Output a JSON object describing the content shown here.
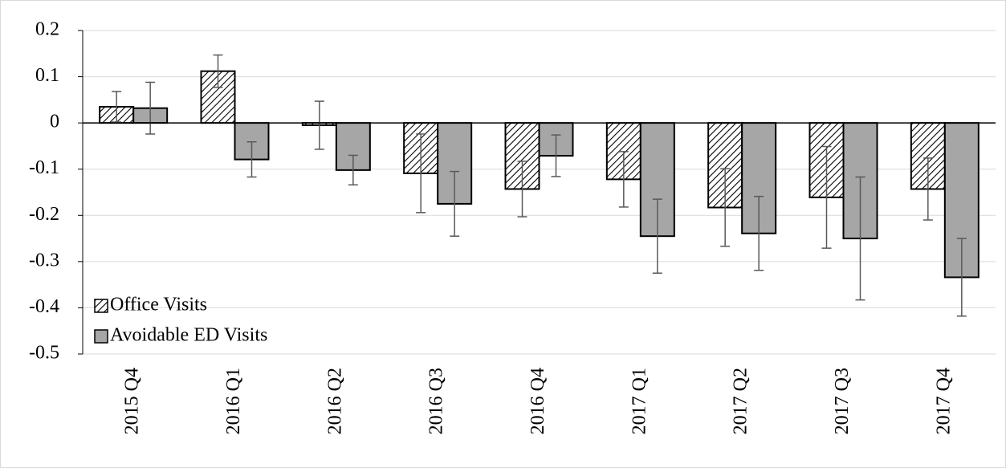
{
  "chart_data": {
    "type": "bar",
    "categories": [
      "2015 Q4",
      "2016 Q1",
      "2016 Q2",
      "2016 Q3",
      "2016 Q4",
      "2017 Q1",
      "2017 Q2",
      "2017 Q3",
      "2017 Q4"
    ],
    "series": [
      {
        "name": "Office Visits",
        "color": "#ffffff",
        "hatch": true,
        "values": [
          0.035,
          0.112,
          -0.005,
          -0.109,
          -0.143,
          -0.122,
          -0.183,
          -0.161,
          -0.143
        ],
        "errors": [
          0.033,
          0.035,
          0.052,
          0.085,
          0.06,
          0.06,
          0.084,
          0.11,
          0.067
        ]
      },
      {
        "name": "Avoidable ED Visits",
        "color": "#a6a6a6",
        "hatch": false,
        "values": [
          0.032,
          -0.079,
          -0.102,
          -0.175,
          -0.071,
          -0.245,
          -0.239,
          -0.25,
          -0.334
        ],
        "errors": [
          0.056,
          0.038,
          0.032,
          0.07,
          0.045,
          0.08,
          0.08,
          0.133,
          0.084
        ]
      }
    ],
    "ylim": [
      -0.5,
      0.2
    ],
    "yticks": [
      0.2,
      0.1,
      0,
      -0.1,
      -0.2,
      -0.3,
      -0.4,
      -0.5
    ],
    "grid": true,
    "legend": "lower-left"
  }
}
